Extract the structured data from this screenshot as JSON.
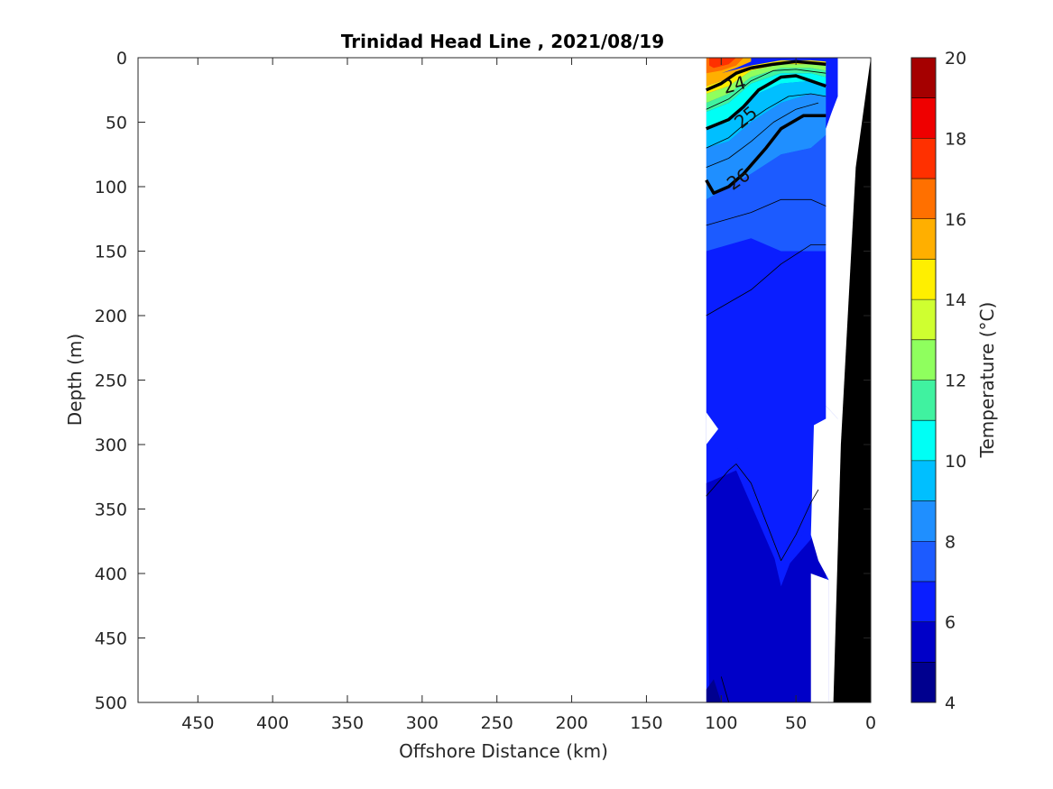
{
  "chart_data": {
    "type": "contour",
    "title": "Trinidad Head Line , 2021/08/19",
    "xlabel": "Offshore Distance (km)",
    "ylabel": "Depth (m)",
    "xlim": [
      490,
      0
    ],
    "ylim": [
      0,
      500
    ],
    "x_reversed": true,
    "y_reversed": true,
    "xticks": [
      450,
      400,
      350,
      300,
      250,
      200,
      150,
      100,
      50,
      0
    ],
    "yticks": [
      0,
      50,
      100,
      150,
      200,
      250,
      300,
      350,
      400,
      450,
      500
    ],
    "colorbar": {
      "label": "Temperature (°C)",
      "range": [
        4,
        20
      ],
      "ticks": [
        4,
        6,
        8,
        10,
        12,
        14,
        16,
        18,
        20
      ],
      "bins": [
        {
          "lo": 4,
          "hi": 5,
          "color": "#00008f"
        },
        {
          "lo": 5,
          "hi": 6,
          "color": "#0000c8"
        },
        {
          "lo": 6,
          "hi": 7,
          "color": "#0a1eff"
        },
        {
          "lo": 7,
          "hi": 8,
          "color": "#1c5bff"
        },
        {
          "lo": 8,
          "hi": 9,
          "color": "#1f8fff"
        },
        {
          "lo": 9,
          "hi": 10,
          "color": "#00bfff"
        },
        {
          "lo": 10,
          "hi": 11,
          "color": "#00fff5"
        },
        {
          "lo": 11,
          "hi": 12,
          "color": "#40f2a0"
        },
        {
          "lo": 12,
          "hi": 13,
          "color": "#8fff5e"
        },
        {
          "lo": 13,
          "hi": 14,
          "color": "#cfff30"
        },
        {
          "lo": 14,
          "hi": 15,
          "color": "#ffef00"
        },
        {
          "lo": 15,
          "hi": 16,
          "color": "#ffaf00"
        },
        {
          "lo": 16,
          "hi": 17,
          "color": "#ff7000"
        },
        {
          "lo": 17,
          "hi": 18,
          "color": "#ff3000"
        },
        {
          "lo": 18,
          "hi": 19,
          "color": "#ef0000"
        },
        {
          "lo": 19,
          "hi": 20,
          "color": "#a50000"
        }
      ]
    },
    "temperature_regions": [
      {
        "temp": 5.5,
        "points": [
          [
            110,
            330
          ],
          [
            108,
            500
          ],
          [
            30,
            500
          ],
          [
            30,
            360
          ],
          [
            60,
            400
          ],
          [
            90,
            320
          ]
        ]
      },
      {
        "temp": 4.5,
        "points": [
          [
            110,
            490
          ],
          [
            105,
            482
          ],
          [
            100,
            500
          ],
          [
            110,
            500
          ]
        ]
      },
      {
        "temp": 6.5,
        "points": [
          [
            110,
            150
          ],
          [
            80,
            140
          ],
          [
            50,
            150
          ],
          [
            30,
            155
          ],
          [
            30,
            330
          ],
          [
            50,
            380
          ],
          [
            60,
            410
          ],
          [
            70,
            360
          ],
          [
            90,
            300
          ],
          [
            110,
            300
          ]
        ]
      },
      {
        "temp": 7.5,
        "points": [
          [
            110,
            110
          ],
          [
            95,
            100
          ],
          [
            80,
            90
          ],
          [
            60,
            75
          ],
          [
            40,
            70
          ],
          [
            30,
            60
          ],
          [
            30,
            150
          ],
          [
            60,
            150
          ],
          [
            80,
            140
          ],
          [
            110,
            150
          ]
        ]
      },
      {
        "temp": 8.5,
        "points": [
          [
            110,
            70
          ],
          [
            95,
            65
          ],
          [
            80,
            50
          ],
          [
            60,
            35
          ],
          [
            40,
            28
          ],
          [
            30,
            30
          ],
          [
            30,
            60
          ],
          [
            40,
            70
          ],
          [
            60,
            75
          ],
          [
            80,
            90
          ],
          [
            95,
            100
          ],
          [
            110,
            110
          ]
        ]
      },
      {
        "temp": 9.5,
        "points": [
          [
            110,
            55
          ],
          [
            95,
            50
          ],
          [
            80,
            30
          ],
          [
            60,
            20
          ],
          [
            40,
            18
          ],
          [
            30,
            20
          ],
          [
            30,
            30
          ],
          [
            40,
            28
          ],
          [
            60,
            35
          ],
          [
            80,
            50
          ],
          [
            95,
            65
          ],
          [
            110,
            70
          ]
        ]
      },
      {
        "temp": 10.5,
        "points": [
          [
            110,
            42
          ],
          [
            95,
            35
          ],
          [
            80,
            20
          ],
          [
            60,
            12
          ],
          [
            40,
            12
          ],
          [
            30,
            15
          ],
          [
            30,
            20
          ],
          [
            40,
            18
          ],
          [
            60,
            20
          ],
          [
            80,
            30
          ],
          [
            95,
            50
          ],
          [
            110,
            55
          ]
        ]
      },
      {
        "temp": 11.5,
        "points": [
          [
            110,
            35
          ],
          [
            95,
            28
          ],
          [
            80,
            15
          ],
          [
            60,
            8
          ],
          [
            40,
            8
          ],
          [
            30,
            10
          ],
          [
            30,
            15
          ],
          [
            40,
            12
          ],
          [
            60,
            12
          ],
          [
            80,
            20
          ],
          [
            95,
            35
          ],
          [
            110,
            42
          ]
        ]
      },
      {
        "temp": 12.5,
        "points": [
          [
            110,
            28
          ],
          [
            95,
            22
          ],
          [
            80,
            10
          ],
          [
            60,
            5
          ],
          [
            40,
            5
          ],
          [
            30,
            6
          ],
          [
            30,
            10
          ],
          [
            40,
            8
          ],
          [
            60,
            8
          ],
          [
            80,
            15
          ],
          [
            95,
            28
          ],
          [
            110,
            35
          ]
        ]
      },
      {
        "temp": 14.0,
        "points": [
          [
            110,
            22
          ],
          [
            95,
            16
          ],
          [
            80,
            6
          ],
          [
            60,
            2
          ],
          [
            40,
            2
          ],
          [
            30,
            3
          ],
          [
            30,
            6
          ],
          [
            40,
            5
          ],
          [
            60,
            5
          ],
          [
            80,
            10
          ],
          [
            95,
            22
          ],
          [
            110,
            28
          ]
        ]
      },
      {
        "temp": 15.5,
        "points": [
          [
            110,
            15
          ],
          [
            100,
            12
          ],
          [
            90,
            8
          ],
          [
            80,
            3
          ],
          [
            80,
            0
          ],
          [
            110,
            0
          ],
          [
            110,
            22
          ],
          [
            95,
            16
          ],
          [
            80,
            6
          ]
        ]
      },
      {
        "temp": 16.5,
        "points": [
          [
            110,
            12
          ],
          [
            100,
            10
          ],
          [
            90,
            6
          ],
          [
            85,
            0
          ],
          [
            110,
            0
          ],
          [
            110,
            15
          ]
        ]
      },
      {
        "temp": 17.5,
        "points": [
          [
            105,
            8
          ],
          [
            95,
            5
          ],
          [
            90,
            0
          ],
          [
            108,
            0
          ],
          [
            108,
            6
          ]
        ]
      }
    ],
    "contours": [
      {
        "level": 24,
        "bold": true,
        "points": [
          [
            110,
            25
          ],
          [
            100,
            20
          ],
          [
            90,
            12
          ],
          [
            80,
            8
          ],
          [
            65,
            5
          ],
          [
            50,
            3
          ],
          [
            30,
            5
          ]
        ]
      },
      {
        "level": 25,
        "bold": true,
        "points": [
          [
            110,
            55
          ],
          [
            95,
            48
          ],
          [
            85,
            38
          ],
          [
            75,
            25
          ],
          [
            60,
            15
          ],
          [
            50,
            14
          ],
          [
            40,
            18
          ],
          [
            30,
            22
          ]
        ]
      },
      {
        "level": 26,
        "bold": true,
        "points": [
          [
            110,
            95
          ],
          [
            105,
            105
          ],
          [
            95,
            100
          ],
          [
            85,
            90
          ],
          [
            70,
            70
          ],
          [
            60,
            55
          ],
          [
            45,
            45
          ],
          [
            30,
            45
          ]
        ]
      },
      {
        "level": null,
        "bold": false,
        "points": [
          [
            110,
            130
          ],
          [
            80,
            120
          ],
          [
            60,
            110
          ],
          [
            40,
            110
          ],
          [
            30,
            115
          ]
        ]
      },
      {
        "level": null,
        "bold": false,
        "points": [
          [
            110,
            200
          ],
          [
            80,
            180
          ],
          [
            60,
            160
          ],
          [
            40,
            145
          ],
          [
            30,
            145
          ]
        ]
      },
      {
        "level": null,
        "bold": false,
        "points": [
          [
            110,
            340
          ],
          [
            95,
            320
          ],
          [
            90,
            315
          ],
          [
            80,
            330
          ],
          [
            70,
            360
          ],
          [
            60,
            390
          ],
          [
            50,
            370
          ],
          [
            40,
            345
          ],
          [
            35,
            335
          ]
        ]
      },
      {
        "level": null,
        "bold": false,
        "points": [
          [
            100,
            480
          ],
          [
            95,
            500
          ]
        ]
      },
      {
        "level": null,
        "bold": false,
        "points": [
          [
            110,
            40
          ],
          [
            95,
            32
          ],
          [
            80,
            18
          ],
          [
            65,
            10
          ],
          [
            50,
            9
          ],
          [
            30,
            12
          ]
        ]
      },
      {
        "level": null,
        "bold": false,
        "points": [
          [
            110,
            70
          ],
          [
            95,
            62
          ],
          [
            85,
            52
          ],
          [
            70,
            40
          ],
          [
            55,
            30
          ],
          [
            40,
            28
          ],
          [
            30,
            30
          ]
        ]
      },
      {
        "level": null,
        "bold": false,
        "points": [
          [
            110,
            85
          ],
          [
            95,
            78
          ],
          [
            80,
            65
          ],
          [
            65,
            50
          ],
          [
            50,
            40
          ],
          [
            35,
            35
          ]
        ]
      }
    ],
    "contour_labels": [
      {
        "text": "24",
        "x": 91,
        "y": 22,
        "angle": -15
      },
      {
        "text": "25",
        "x": 83,
        "y": 47,
        "angle": -40
      },
      {
        "text": "26",
        "x": 88,
        "y": 95,
        "angle": -35
      }
    ],
    "bathymetry": [
      [
        22,
        500
      ],
      [
        0,
        500
      ],
      [
        0,
        0
      ],
      [
        10,
        85
      ],
      [
        20,
        300
      ],
      [
        25,
        500
      ]
    ],
    "data_mask": [
      [
        110,
        260
      ],
      [
        110,
        295
      ],
      [
        115,
        300
      ],
      [
        110,
        305
      ],
      [
        110,
        500
      ],
      [
        40,
        500
      ],
      [
        40,
        420
      ],
      [
        30,
        405
      ],
      [
        30,
        360
      ],
      [
        50,
        330
      ],
      [
        30,
        300
      ],
      [
        30,
        270
      ],
      [
        22,
        280
      ],
      [
        22,
        500
      ],
      [
        0,
        500
      ],
      [
        0,
        0
      ],
      [
        10,
        30
      ],
      [
        20,
        60
      ],
      [
        28,
        55
      ],
      [
        22,
        40
      ],
      [
        22,
        20
      ],
      [
        22,
        0
      ]
    ]
  }
}
